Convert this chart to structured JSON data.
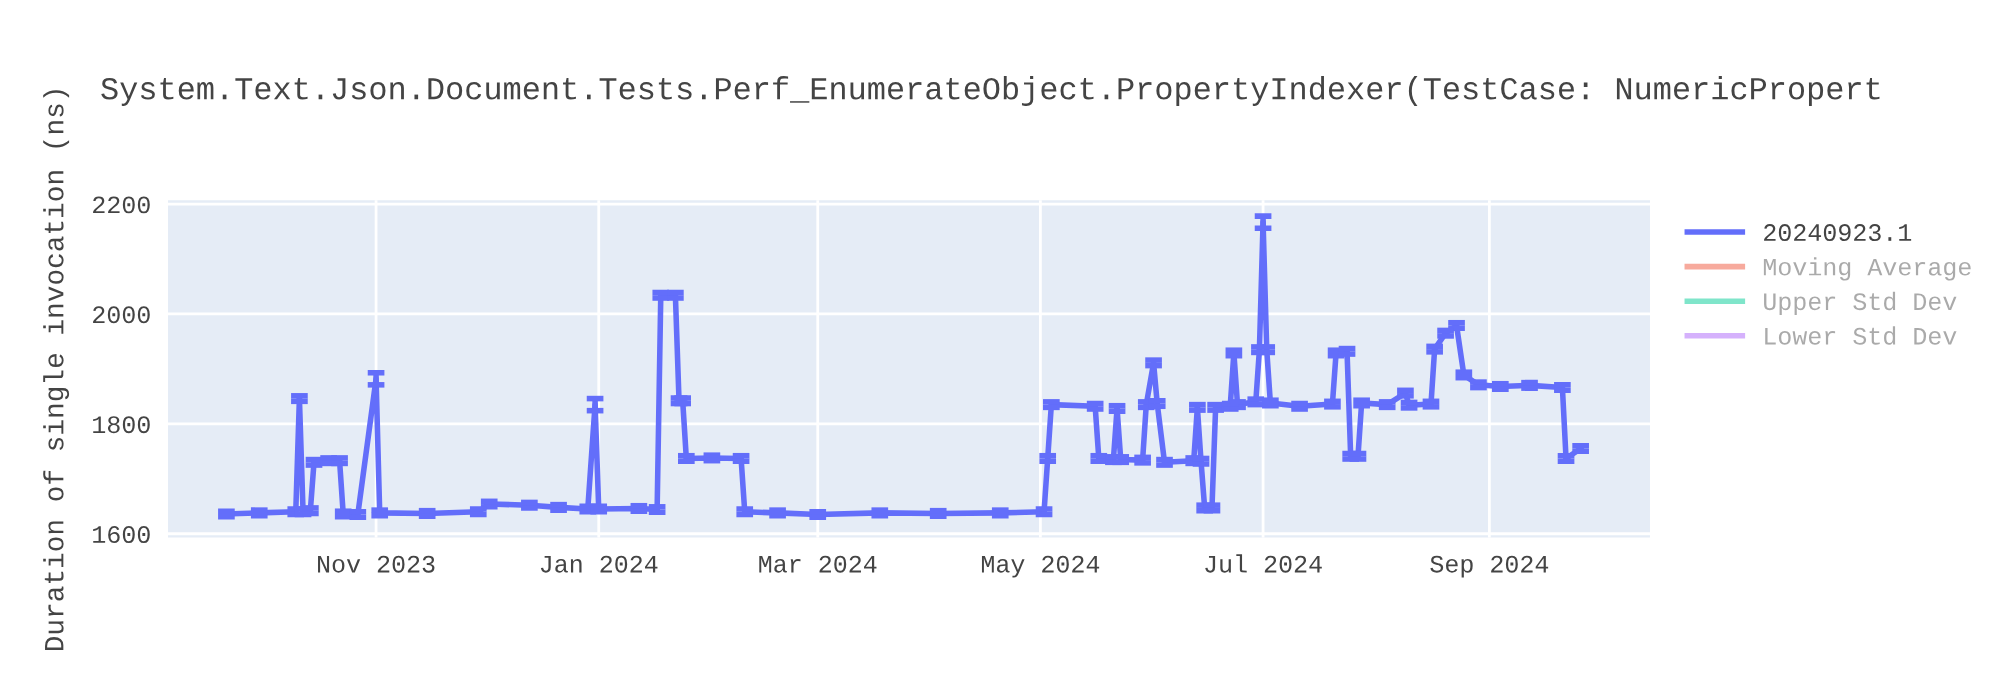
{
  "chart_data": {
    "type": "line",
    "title": "System.Text.Json.Document.Tests.Perf_EnumerateObject.PropertyIndexer(TestCase: NumericPropert",
    "ylabel": "Duration of single invocation (ns)",
    "x": [
      "2023-09-21",
      "2023-09-30",
      "2023-10-10",
      "2023-10-11",
      "2023-10-12",
      "2023-10-14",
      "2023-10-15",
      "2023-10-19",
      "2023-10-22",
      "2023-10-23",
      "2023-10-27",
      "2023-11-01",
      "2023-11-02",
      "2023-11-15",
      "2023-11-29",
      "2023-12-02",
      "2023-12-13",
      "2023-12-21",
      "2023-12-29",
      "2023-12-31",
      "2024-01-01",
      "2024-01-12",
      "2024-01-17",
      "2024-01-18",
      "2024-01-22",
      "2024-01-23",
      "2024-01-24",
      "2024-01-25",
      "2024-02-01",
      "2024-02-09",
      "2024-02-10",
      "2024-02-19",
      "2024-03-01",
      "2024-03-18",
      "2024-04-03",
      "2024-04-20",
      "2024-05-02",
      "2024-05-03",
      "2024-05-04",
      "2024-05-16",
      "2024-05-17",
      "2024-05-21",
      "2024-05-22",
      "2024-05-23",
      "2024-05-29",
      "2024-05-30",
      "2024-06-01",
      "2024-06-02",
      "2024-06-04",
      "2024-06-12",
      "2024-06-13",
      "2024-06-14",
      "2024-06-15",
      "2024-06-17",
      "2024-06-18",
      "2024-06-22",
      "2024-06-23",
      "2024-06-24",
      "2024-06-29",
      "2024-06-30",
      "2024-07-01",
      "2024-07-02",
      "2024-07-03",
      "2024-07-11",
      "2024-07-20",
      "2024-07-21",
      "2024-07-24",
      "2024-07-25",
      "2024-07-27",
      "2024-07-28",
      "2024-08-04",
      "2024-08-09",
      "2024-08-10",
      "2024-08-16",
      "2024-08-17",
      "2024-08-20",
      "2024-08-23",
      "2024-08-25",
      "2024-08-29",
      "2024-09-04",
      "2024-09-12",
      "2024-09-21",
      "2024-09-22",
      "2024-09-26"
    ],
    "series": [
      {
        "name": "20240923.1",
        "color": "#636efa",
        "values": [
          1636,
          1638,
          1640,
          1846,
          1640,
          1642,
          1730,
          1733,
          1733,
          1636,
          1635,
          1882,
          1638,
          1637,
          1640,
          1654,
          1652,
          1648,
          1645,
          1835,
          1645,
          1646,
          1644,
          2034,
          2034,
          1842,
          1842,
          1737,
          1738,
          1737,
          1640,
          1638,
          1635,
          1638,
          1637,
          1638,
          1640,
          1737,
          1835,
          1832,
          1737,
          1735,
          1828,
          1735,
          1734,
          1835,
          1911,
          1837,
          1730,
          1733,
          1830,
          1732,
          1647,
          1647,
          1830,
          1832,
          1929,
          1835,
          1840,
          1935,
          2167,
          1935,
          1838,
          1832,
          1836,
          1929,
          1932,
          1741,
          1741,
          1838,
          1835,
          1856,
          1834,
          1836,
          1936,
          1965,
          1979,
          1889,
          1871,
          1868,
          1870,
          1866,
          1737,
          1755
        ],
        "errors": [
          5,
          5,
          5,
          5,
          5,
          5,
          5,
          5,
          5,
          5,
          5,
          11,
          5,
          5,
          5,
          5,
          5,
          5,
          5,
          11,
          5,
          5,
          5,
          5,
          5,
          5,
          5,
          5,
          5,
          5,
          5,
          5,
          5,
          5,
          5,
          5,
          5,
          5,
          5,
          5,
          5,
          5,
          5,
          5,
          5,
          5,
          5,
          5,
          5,
          5,
          5,
          5,
          5,
          5,
          5,
          5,
          5,
          5,
          5,
          5,
          11,
          5,
          5,
          5,
          5,
          5,
          5,
          5,
          5,
          5,
          5,
          5,
          5,
          5,
          5,
          5,
          5,
          5,
          5,
          5,
          5,
          5,
          5,
          5
        ]
      },
      {
        "name": "Moving Average",
        "color": "#ef553b",
        "values": [
          null,
          null,
          null,
          null,
          null,
          null,
          null,
          null,
          null,
          null,
          null,
          null,
          null,
          null,
          null,
          null,
          null,
          null,
          null,
          null,
          null,
          null,
          null,
          null,
          null,
          null,
          null,
          null,
          null,
          null,
          null,
          null,
          null,
          null,
          null,
          null,
          null,
          null,
          null,
          null,
          null,
          null,
          null,
          null,
          null,
          null,
          null,
          null,
          null,
          null,
          null,
          null,
          null,
          null,
          null,
          null,
          null,
          null,
          null,
          null,
          null,
          null,
          null,
          null,
          null,
          null,
          null,
          null,
          null,
          null,
          null,
          null,
          null,
          null,
          null,
          null,
          null,
          null,
          null,
          null,
          null,
          null,
          null,
          null
        ]
      },
      {
        "name": "Upper Std Dev",
        "color": "#00cc96",
        "values": [
          null,
          null,
          null,
          null,
          null,
          null,
          null,
          null,
          null,
          null,
          null,
          null,
          null,
          null,
          null,
          null,
          null,
          null,
          null,
          null,
          null,
          null,
          null,
          null,
          null,
          null,
          null,
          null,
          null,
          null,
          null,
          null,
          null,
          null,
          null,
          null,
          null,
          null,
          null,
          null,
          null,
          null,
          null,
          null,
          null,
          null,
          null,
          null,
          null,
          null,
          null,
          null,
          null,
          null,
          null,
          null,
          null,
          null,
          null,
          null,
          null,
          null,
          null,
          null,
          null,
          null,
          null,
          null,
          null,
          null,
          null,
          null,
          null,
          null,
          null,
          null,
          null,
          null,
          null,
          null,
          null,
          null,
          null,
          null
        ]
      },
      {
        "name": "Lower Std Dev",
        "color": "#ab63fa",
        "values": [
          null,
          null,
          null,
          null,
          null,
          null,
          null,
          null,
          null,
          null,
          null,
          null,
          null,
          null,
          null,
          null,
          null,
          null,
          null,
          null,
          null,
          null,
          null,
          null,
          null,
          null,
          null,
          null,
          null,
          null,
          null,
          null,
          null,
          null,
          null,
          null,
          null,
          null,
          null,
          null,
          null,
          null,
          null,
          null,
          null,
          null,
          null,
          null,
          null,
          null,
          null,
          null,
          null,
          null,
          null,
          null,
          null,
          null,
          null,
          null,
          null,
          null,
          null,
          null,
          null,
          null,
          null,
          null,
          null,
          null,
          null,
          null,
          null,
          null,
          null,
          null,
          null,
          null,
          null,
          null,
          null,
          null,
          null,
          null
        ]
      }
    ],
    "xlim": [
      "2023-09-05",
      "2024-10-15"
    ],
    "xticks": [
      {
        "value": "2023-11-01",
        "label": "Nov 2023"
      },
      {
        "value": "2024-01-01",
        "label": "Jan 2024"
      },
      {
        "value": "2024-03-01",
        "label": "Mar 2024"
      },
      {
        "value": "2024-05-01",
        "label": "May 2024"
      },
      {
        "value": "2024-07-01",
        "label": "Jul 2024"
      },
      {
        "value": "2024-09-01",
        "label": "Sep 2024"
      }
    ],
    "ylim": [
      1593,
      2207
    ],
    "yticks": [
      1600,
      1800,
      2000,
      2200
    ],
    "grid": true,
    "legend": "top right",
    "marker": "none",
    "line_style": "solid"
  }
}
